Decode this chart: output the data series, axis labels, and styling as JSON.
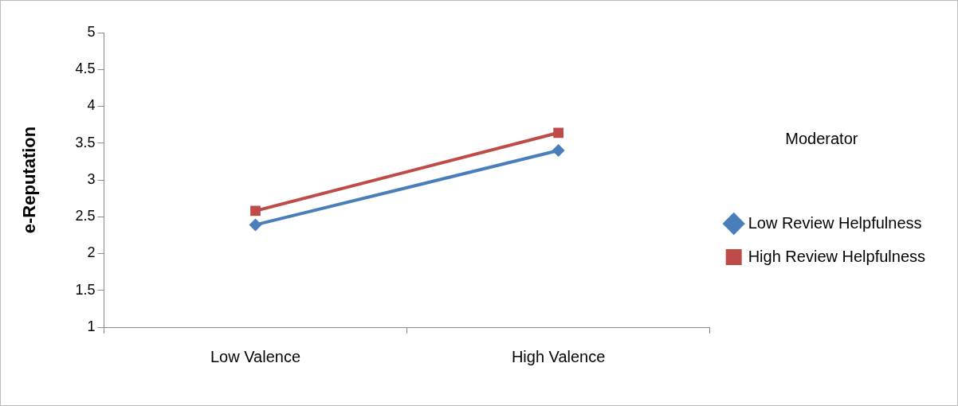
{
  "chart_data": {
    "type": "line",
    "ylabel": "e-Reputation",
    "legend_title": "Moderator",
    "legend": "right",
    "grid": false,
    "categories": [
      "Low Valence",
      "High Valence"
    ],
    "ylim": [
      1,
      5
    ],
    "yticks": [
      1,
      1.5,
      2,
      2.5,
      3,
      3.5,
      4,
      4.5,
      5
    ],
    "series": [
      {
        "name": "Low Review Helpfulness",
        "color": "#4a7ebb",
        "values": [
          2.39,
          3.4
        ],
        "marker": "diamond"
      },
      {
        "name": "High Review Helpfulness",
        "color": "#be4b48",
        "values": [
          2.58,
          3.64
        ],
        "marker": "square"
      }
    ],
    "line_style": "solid"
  }
}
